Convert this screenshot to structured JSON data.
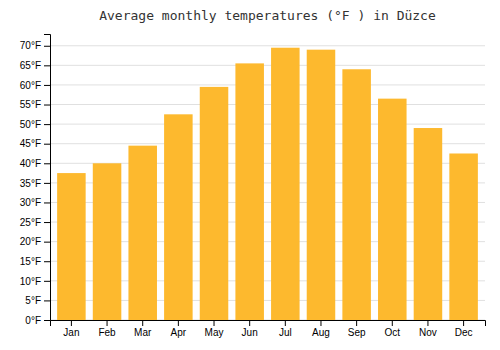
{
  "chart_data": {
    "type": "bar",
    "title": "Average monthly temperatures (°F ) in Düzce",
    "categories": [
      "Jan",
      "Feb",
      "Mar",
      "Apr",
      "May",
      "Jun",
      "Jul",
      "Aug",
      "Sep",
      "Oct",
      "Nov",
      "Dec"
    ],
    "values": [
      37.5,
      40.0,
      44.5,
      52.5,
      59.5,
      65.5,
      69.5,
      69.0,
      64.0,
      56.5,
      49.0,
      42.5
    ],
    "color": "#FDB92E",
    "ylim": [
      0,
      73
    ],
    "yticks": [
      {
        "value": 0,
        "label": "0°F"
      },
      {
        "value": 5,
        "label": "5°F"
      },
      {
        "value": 10,
        "label": "10°F"
      },
      {
        "value": 15,
        "label": "15°F"
      },
      {
        "value": 20,
        "label": "20°F"
      },
      {
        "value": 25,
        "label": "25°F"
      },
      {
        "value": 30,
        "label": "30°F"
      },
      {
        "value": 35,
        "label": "35°F"
      },
      {
        "value": 40,
        "label": "40°F"
      },
      {
        "value": 45,
        "label": "45°F"
      },
      {
        "value": 50,
        "label": "50°F"
      },
      {
        "value": 55,
        "label": "55°F"
      },
      {
        "value": 60,
        "label": "60°F"
      },
      {
        "value": 65,
        "label": "65°F"
      },
      {
        "value": 70,
        "label": "70°F"
      }
    ],
    "grid": true
  }
}
